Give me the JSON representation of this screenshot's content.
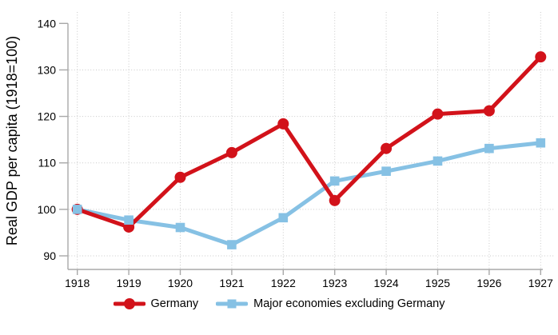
{
  "chart_data": {
    "type": "line",
    "title": "",
    "xlabel": "",
    "ylabel": "Real GDP per capita (1918=100)",
    "x": [
      1918,
      1919,
      1920,
      1921,
      1922,
      1923,
      1924,
      1925,
      1926,
      1927
    ],
    "series": [
      {
        "name": "Germany",
        "color": "#d2121a",
        "marker": "circle",
        "values": [
          100,
          96.2,
          106.9,
          112.2,
          118.4,
          101.9,
          113.1,
          120.5,
          121.2,
          132.8
        ]
      },
      {
        "name": "Major economies excluding Germany",
        "color": "#86c1e4",
        "marker": "square",
        "values": [
          100,
          97.7,
          96.1,
          92.4,
          98.2,
          106.1,
          108.2,
          110.4,
          113.1,
          114.3
        ]
      }
    ],
    "ylim": [
      90,
      140
    ],
    "yticks": [
      90,
      100,
      110,
      120,
      130,
      140
    ],
    "ygrid_values": [
      90,
      100,
      110,
      120,
      130
    ],
    "grid": "dotted",
    "legend_position": "bottom"
  },
  "style": {
    "axis_color": "#a8a8a8",
    "grid_color": "#c9c9c9",
    "text_color": "#000000",
    "background": "#ffffff"
  }
}
